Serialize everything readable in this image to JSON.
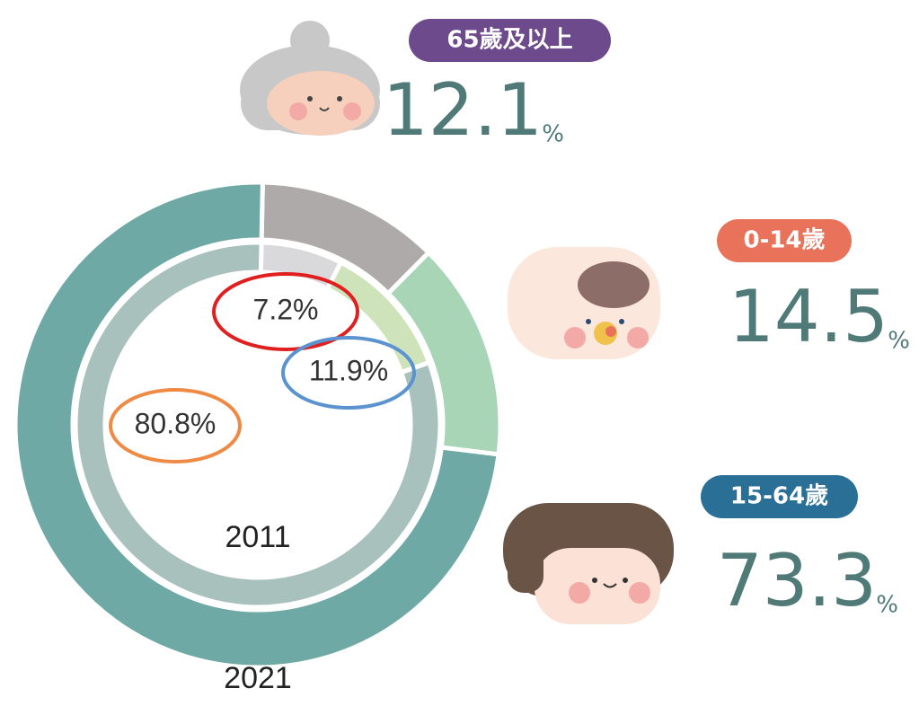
{
  "chart_data": {
    "type": "donut",
    "categories": [
      "65歲及以上",
      "0-14歲",
      "15-64歲"
    ],
    "category_colors": [
      "#6d4a8b",
      "#e8735a",
      "#2a6f96"
    ],
    "unit": "%",
    "series": [
      {
        "name": "2021",
        "colors": [
          "#aeaaa9",
          "#a8d5b5",
          "#6fa9a6"
        ],
        "values": [
          12.1,
          14.5,
          73.3
        ]
      },
      {
        "name": "2011",
        "colors": [
          "#d9d8da",
          "#cfe3bb",
          "#a9c1bd"
        ],
        "values": [
          7.2,
          11.9,
          80.8
        ],
        "value_labels": [
          "7.2%",
          "11.9%",
          "80.8%"
        ]
      }
    ]
  }
}
